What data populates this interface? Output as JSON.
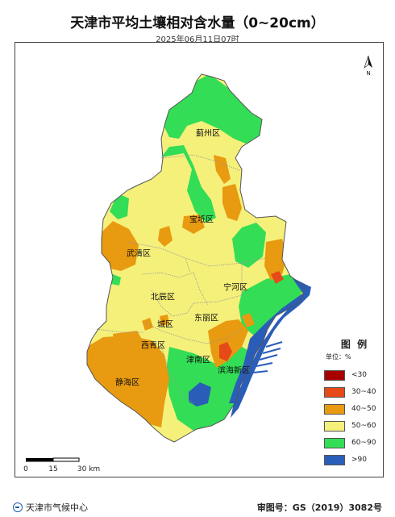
{
  "header": {
    "title": "天津市平均土壤相对含水量（0~20cm）",
    "subtitle": "2025年06月11日07时"
  },
  "north_arrow": {
    "label": "N",
    "icon": "north-arrow-icon"
  },
  "districts": [
    {
      "id": "jizhou",
      "label": "蓟州区"
    },
    {
      "id": "baodi",
      "label": "宝坻区"
    },
    {
      "id": "wuqing",
      "label": "武清区"
    },
    {
      "id": "ninghe",
      "label": "宁河区"
    },
    {
      "id": "beichen",
      "label": "北辰区"
    },
    {
      "id": "dongli",
      "label": "东丽区"
    },
    {
      "id": "chengqu",
      "label": "城区"
    },
    {
      "id": "xiqing",
      "label": "西青区"
    },
    {
      "id": "jinnan",
      "label": "津南区"
    },
    {
      "id": "binhai",
      "label": "滨海新区"
    },
    {
      "id": "jinghai",
      "label": "静海区"
    }
  ],
  "legend": {
    "title": "图 例",
    "unit": "单位：%",
    "items": [
      {
        "label": "<30",
        "color": "#a80000"
      },
      {
        "label": "30~40",
        "color": "#e64a19"
      },
      {
        "label": "40~50",
        "color": "#e89a10"
      },
      {
        "label": "50~60",
        "color": "#f5f07a"
      },
      {
        "label": "60~90",
        "color": "#33dd55"
      },
      {
        "label": ">90",
        "color": "#2a5db8"
      }
    ]
  },
  "scale_bar": {
    "labels": [
      "0",
      "15",
      "30 km"
    ]
  },
  "footer": {
    "agency": "天津市气候中心",
    "approval": "审图号：GS（2019）3082号"
  },
  "colors": {
    "sea": "#2a5db8",
    "boundary": "#888888"
  }
}
